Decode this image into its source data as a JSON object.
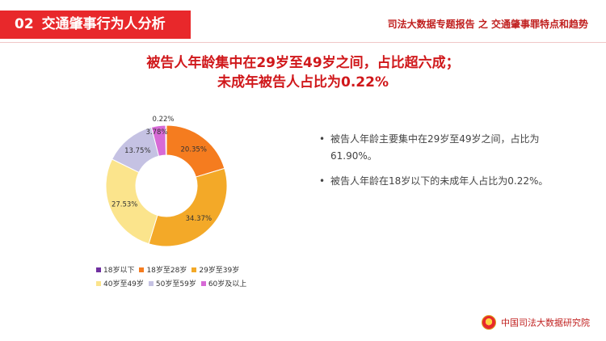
{
  "header": {
    "section_number": "02",
    "section_title": "交通肇事行为人分析",
    "report_title": "司法大数据专题报告 之 交通肇事罪特点和趋势"
  },
  "headline": {
    "line1": "被告人年龄集中在29岁至49岁之间，占比超六成；",
    "line2": "未成年被告人占比为0.22%"
  },
  "bullets": [
    "被告人年龄主要集中在29岁至49岁之间，占比为61.90%。",
    "被告人年龄在18岁以下的未成年人占比为0.22%。"
  ],
  "footer": {
    "org": "中国司法大数据研究院"
  },
  "chart_data": {
    "type": "pie",
    "donut": true,
    "categories": [
      "18岁以下",
      "18岁至28岁",
      "29岁至39岁",
      "40岁至49岁",
      "50岁至59岁",
      "60岁及以上"
    ],
    "values": [
      0.22,
      20.35,
      34.37,
      27.53,
      13.75,
      3.78
    ],
    "labels": [
      "0.22%",
      "20.35%",
      "34.37%",
      "27.53%",
      "13.75%",
      "3.78%"
    ],
    "colors": [
      "#7030a0",
      "#f57c1f",
      "#f3a928",
      "#fbe48c",
      "#c5c2e3",
      "#d76ad6"
    ],
    "legend_position": "bottom"
  }
}
